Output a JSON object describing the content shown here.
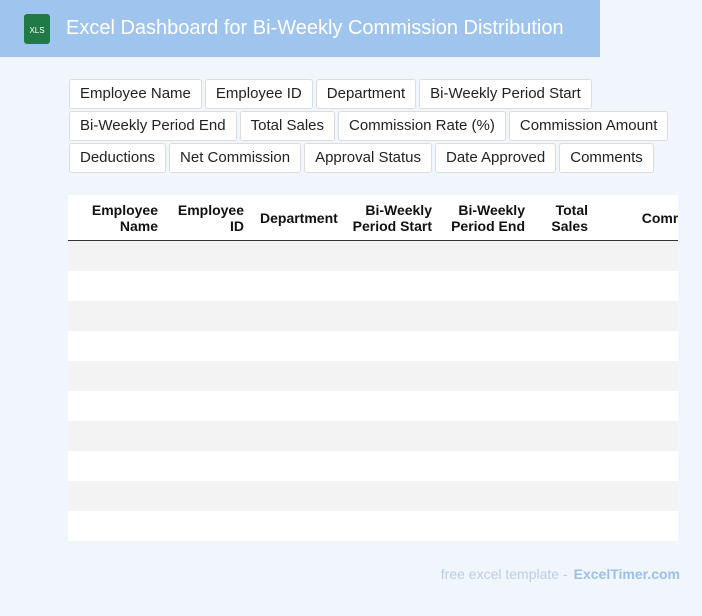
{
  "header": {
    "icon": "XLS",
    "title": "Excel Dashboard for Bi-Weekly Commission Distribution"
  },
  "fields": [
    "Employee Name",
    "Employee ID",
    "Department",
    "Bi-Weekly Period Start",
    "Bi-Weekly Period End",
    "Total Sales",
    "Commission Rate (%)",
    "Commission Amount",
    "Deductions",
    "Net Commission",
    "Approval Status",
    "Date Approved",
    "Comments"
  ],
  "table": {
    "headers": [
      "Employee Name",
      "Employee ID",
      "Department",
      "Bi-Weekly Period Start",
      "Bi-Weekly Period End",
      "Total Sales",
      "Commission Rate"
    ]
  },
  "footer": {
    "text": "free excel template -",
    "link": "ExcelTimer.com"
  }
}
